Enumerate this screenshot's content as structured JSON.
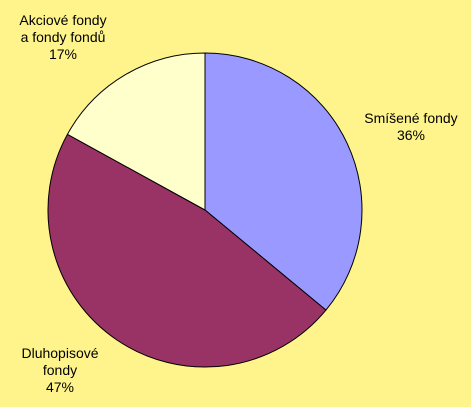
{
  "chart_data": {
    "type": "pie",
    "title": "",
    "slices": [
      {
        "label_lines": [
          "Smíšené fondy"
        ],
        "percent_label": "36%",
        "value": 36,
        "color": "#9999FF"
      },
      {
        "label_lines": [
          "Dluhopisové",
          "fondy"
        ],
        "percent_label": "47%",
        "value": 47,
        "color": "#993366"
      },
      {
        "label_lines": [
          "Akciové fondy",
          "a fondy fondů"
        ],
        "percent_label": "17%",
        "value": 17,
        "color": "#FFFFCC"
      }
    ],
    "start_angle_deg": 0,
    "direction": "clockwise",
    "legend": "none"
  }
}
